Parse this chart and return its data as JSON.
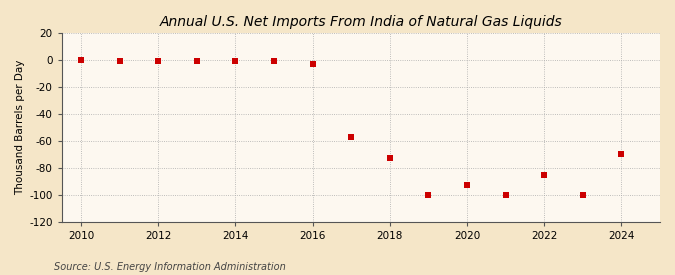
{
  "title": "Annual U.S. Net Imports From India of Natural Gas Liquids",
  "ylabel": "Thousand Barrels per Day",
  "source": "Source: U.S. Energy Information Administration",
  "years": [
    2010,
    2011,
    2012,
    2013,
    2014,
    2015,
    2016,
    2017,
    2018,
    2019,
    2020,
    2021,
    2022,
    2023,
    2024
  ],
  "values": [
    0,
    -1,
    -1,
    -1,
    -1,
    -1,
    -3,
    -57,
    -73,
    -100,
    -93,
    -100,
    -85,
    -100,
    -70
  ],
  "marker_color": "#cc0000",
  "marker_size": 4,
  "ylim": [
    -120,
    20
  ],
  "yticks": [
    -120,
    -100,
    -80,
    -60,
    -40,
    -20,
    0,
    20
  ],
  "xlim": [
    2009.5,
    2025.0
  ],
  "xticks": [
    2010,
    2012,
    2014,
    2016,
    2018,
    2020,
    2022,
    2024
  ],
  "bg_color_top": "#f5e6c8",
  "bg_color_bottom": "#fdf8f0",
  "ax_bg_color": "#fdf8f0",
  "grid_color": "#aaaaaa",
  "spine_color": "#555555",
  "title_fontsize": 10,
  "label_fontsize": 7.5,
  "tick_fontsize": 7.5,
  "source_fontsize": 7
}
